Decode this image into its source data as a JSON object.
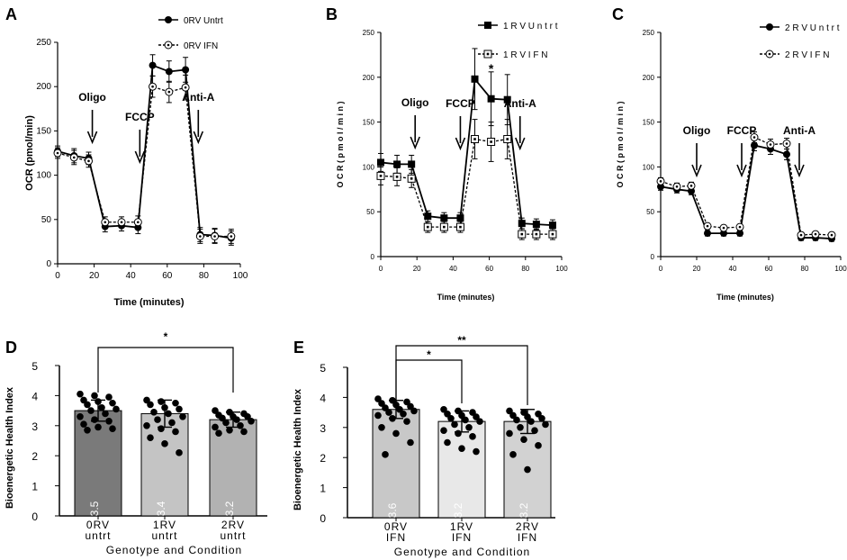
{
  "chart_data": [
    {
      "panel": "A",
      "type": "line",
      "ylabel": "OCR (pmol/min)",
      "xlabel": "Time (minutes)",
      "xlim": [
        0,
        100
      ],
      "ylim": [
        0,
        250
      ],
      "xticks": [
        "0",
        "20",
        "40",
        "60",
        "80",
        "100"
      ],
      "yticks": [
        "0",
        "50",
        "100",
        "150",
        "200",
        "250"
      ],
      "x": [
        0,
        9,
        17,
        26,
        35,
        44,
        52,
        61,
        70,
        78,
        86,
        95
      ],
      "series": [
        {
          "name": "0RV Untrt",
          "marker": "filled-circle",
          "style": "solid",
          "values": [
            127,
            122,
            119,
            42,
            43,
            41,
            224,
            217,
            219,
            33,
            32,
            29
          ],
          "errors": [
            6,
            8,
            7,
            6,
            6,
            7,
            12,
            12,
            14,
            8,
            8,
            8
          ]
        },
        {
          "name": "0RV IFN",
          "marker": "open-circle",
          "style": "dotted",
          "values": [
            125,
            120,
            116,
            47,
            47,
            47,
            200,
            194,
            199,
            31,
            31,
            31
          ],
          "errors": [
            6,
            8,
            7,
            6,
            6,
            7,
            12,
            12,
            14,
            8,
            8,
            8
          ]
        }
      ],
      "annotations": [
        {
          "text": "Oligo",
          "x": 19
        },
        {
          "text": "FCCP",
          "x": 45
        },
        {
          "text": "Anti-A",
          "x": 77
        }
      ]
    },
    {
      "panel": "B",
      "type": "line",
      "ylabel": "O C R  ( p m o l / m i n )",
      "xlabel": "Time (minutes)",
      "xlim": [
        0,
        100
      ],
      "ylim": [
        0,
        250
      ],
      "xticks": [
        "0",
        "20",
        "40",
        "60",
        "80",
        "100"
      ],
      "yticks": [
        "0",
        "50",
        "100",
        "150",
        "200",
        "250"
      ],
      "x": [
        0,
        9,
        17,
        26,
        35,
        44,
        52,
        61,
        70,
        78,
        86,
        95
      ],
      "series": [
        {
          "name": "1 R V  U n t r t",
          "marker": "filled-square",
          "style": "solid",
          "values": [
            105,
            103,
            103,
            45,
            43,
            43,
            198,
            176,
            175,
            37,
            36,
            35
          ],
          "errors": [
            10,
            10,
            10,
            6,
            6,
            6,
            34,
            30,
            28,
            6,
            6,
            6
          ]
        },
        {
          "name": "1 R V  I F N",
          "marker": "open-square",
          "style": "dotted",
          "values": [
            90,
            89,
            87,
            33,
            33,
            33,
            131,
            128,
            131,
            25,
            25,
            25
          ],
          "errors": [
            10,
            10,
            10,
            6,
            6,
            6,
            22,
            22,
            22,
            6,
            6,
            6
          ]
        }
      ],
      "annotations": [
        {
          "text": "Oligo",
          "x": 19
        },
        {
          "text": "FCCP",
          "x": 44
        },
        {
          "text": "Anti-A",
          "x": 77
        },
        {
          "text": "*",
          "x": 61
        }
      ]
    },
    {
      "panel": "C",
      "type": "line",
      "ylabel": "O C R  ( p m o l / m i n )",
      "xlabel": "Time (minutes)",
      "xlim": [
        0,
        100
      ],
      "ylim": [
        0,
        250
      ],
      "xticks": [
        "0",
        "20",
        "40",
        "60",
        "80",
        "100"
      ],
      "yticks": [
        "0",
        "50",
        "100",
        "150",
        "200",
        "250"
      ],
      "x": [
        0,
        9,
        17,
        26,
        35,
        44,
        52,
        61,
        70,
        78,
        86,
        95
      ],
      "series": [
        {
          "name": "2 R V  U n t r t",
          "marker": "filled-circle",
          "style": "solid",
          "values": [
            78,
            75,
            73,
            26,
            26,
            26,
            124,
            120,
            114,
            21,
            21,
            20
          ],
          "errors": [
            4,
            4,
            4,
            3,
            3,
            3,
            6,
            6,
            6,
            3,
            3,
            3
          ]
        },
        {
          "name": "2 R V  I F N",
          "marker": "open-circle",
          "style": "dotted",
          "values": [
            84,
            78,
            79,
            34,
            32,
            33,
            133,
            125,
            126,
            24,
            25,
            24
          ],
          "errors": [
            4,
            4,
            4,
            3,
            3,
            3,
            6,
            6,
            6,
            3,
            3,
            3
          ]
        }
      ],
      "annotations": [
        {
          "text": "Oligo",
          "x": 20
        },
        {
          "text": "FCCP",
          "x": 45
        },
        {
          "text": "Anti-A",
          "x": 77
        }
      ]
    },
    {
      "panel": "D",
      "type": "bar",
      "ylabel": "Bioenergetic Health Index",
      "xlabel": "Genotype and Condition",
      "ylim": [
        0,
        5
      ],
      "yticks": [
        "0",
        "1",
        "2",
        "3",
        "4",
        "5"
      ],
      "categories": [
        [
          "0RV",
          "untrt"
        ],
        [
          "1RV",
          "untrt"
        ],
        [
          "2RV",
          "untrt"
        ]
      ],
      "values": [
        3.5,
        3.4,
        3.2
      ],
      "value_labels": [
        "3.5",
        "3.4",
        "3.2"
      ],
      "bar_colors": [
        "#7a7a7a",
        "#c4c4c4",
        "#b2b2b2"
      ],
      "error_sd": [
        0.35,
        0.45,
        0.25
      ],
      "points": [
        [
          4.05,
          4.0,
          3.95,
          3.85,
          3.8,
          3.75,
          3.7,
          3.6,
          3.55,
          3.5,
          3.4,
          3.3,
          3.2,
          3.15,
          3.05,
          2.95,
          2.9,
          2.85
        ],
        [
          3.85,
          3.8,
          3.75,
          3.7,
          3.6,
          3.55,
          3.45,
          3.4,
          3.3,
          3.2,
          3.1,
          3.0,
          2.9,
          2.8,
          2.6,
          2.4,
          2.1
        ],
        [
          3.5,
          3.45,
          3.4,
          3.35,
          3.3,
          3.3,
          3.25,
          3.2,
          3.15,
          3.1,
          3.0,
          2.95,
          2.85,
          2.8,
          2.75
        ]
      ],
      "significance": [
        {
          "from": 0,
          "to": 2,
          "label": "*"
        }
      ]
    },
    {
      "panel": "E",
      "type": "bar",
      "ylabel": "Bioenergetic Health Index",
      "xlabel": "Genotype and Condition",
      "ylim": [
        0,
        5
      ],
      "yticks": [
        "0",
        "1",
        "2",
        "3",
        "4",
        "5"
      ],
      "categories": [
        [
          "0RV",
          "IFN"
        ],
        [
          "1RV",
          "IFN"
        ],
        [
          "2RV",
          "IFN"
        ]
      ],
      "values": [
        3.6,
        3.2,
        3.2
      ],
      "value_labels": [
        "3.6",
        "3.2",
        "3.2"
      ],
      "bar_colors": [
        "#c8c8c8",
        "#e8e8e8",
        "#d2d2d2"
      ],
      "error_sd": [
        0.3,
        0.35,
        0.4
      ],
      "points": [
        [
          3.95,
          3.9,
          3.85,
          3.8,
          3.75,
          3.7,
          3.65,
          3.6,
          3.55,
          3.5,
          3.45,
          3.4,
          3.3,
          3.2,
          3.0,
          2.8,
          2.5,
          2.1
        ],
        [
          3.6,
          3.55,
          3.5,
          3.45,
          3.4,
          3.35,
          3.3,
          3.25,
          3.2,
          3.1,
          3.0,
          2.9,
          2.8,
          2.7,
          2.5,
          2.3,
          2.2
        ],
        [
          3.55,
          3.5,
          3.45,
          3.4,
          3.35,
          3.3,
          3.25,
          3.2,
          3.1,
          3.0,
          2.9,
          2.8,
          2.6,
          2.4,
          2.1,
          1.6
        ]
      ],
      "significance": [
        {
          "from": 0,
          "to": 1,
          "label": "*"
        },
        {
          "from": 0,
          "to": 2,
          "label": "**"
        }
      ]
    }
  ]
}
